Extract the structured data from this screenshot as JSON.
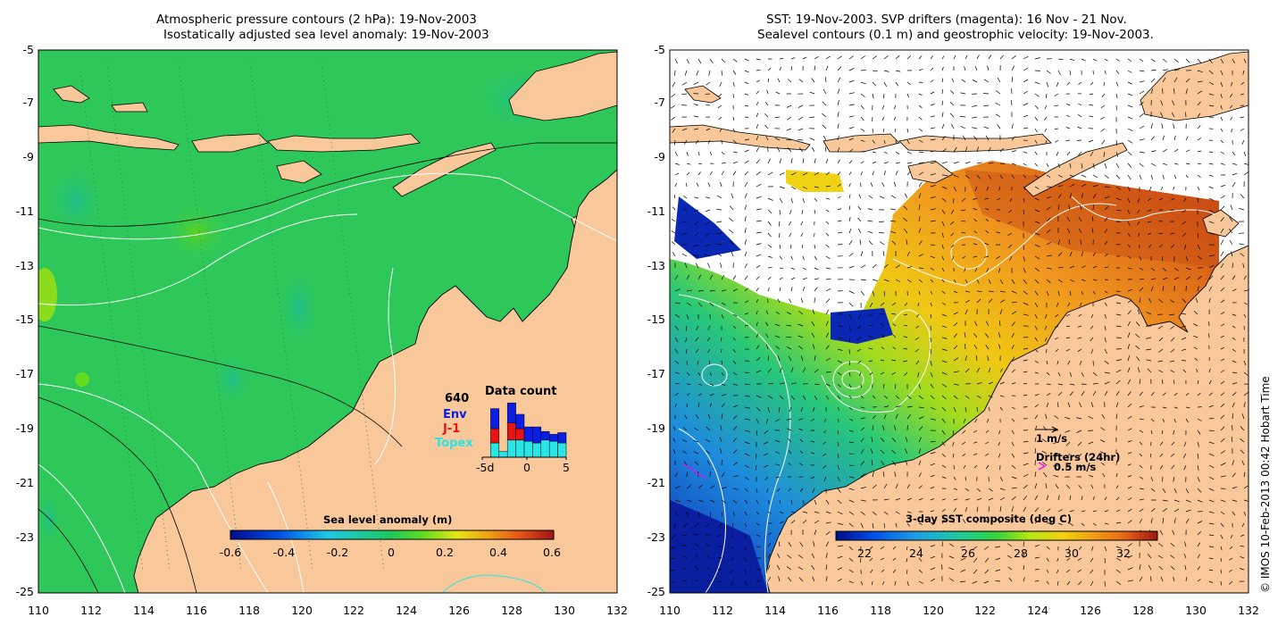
{
  "left_panel": {
    "title_line1": "Atmospheric pressure contours (2 hPa): 19-Nov-2003",
    "title_line2": "Isostatically adjusted sea level anomaly: 19-Nov-2003",
    "y_ticks": [
      "-5",
      "-7",
      "-9",
      "-11",
      "-13",
      "-15",
      "-17",
      "-19",
      "-21",
      "-23",
      "-25"
    ],
    "x_ticks": [
      "110",
      "112",
      "114",
      "116",
      "118",
      "120",
      "122",
      "124",
      "126",
      "128",
      "130",
      "132"
    ],
    "colorbar": {
      "title": "Sea level anomaly (m)",
      "ticks": [
        "-0.6",
        "-0.4",
        "-0.2",
        "0",
        "0.2",
        "0.4",
        "0.6"
      ]
    },
    "data_count": {
      "title": "Data count",
      "total": "640",
      "legend": [
        {
          "label": "Env",
          "color": "#0a1ee6"
        },
        {
          "label": "J-1",
          "color": "#e61414"
        },
        {
          "label": "Topex",
          "color": "#28e6e6"
        }
      ],
      "x_ticks": [
        "-5d",
        "0",
        "5"
      ],
      "bars": [
        {
          "day": -4,
          "topex": 0.25,
          "j1": 0.25,
          "env": 0.35
        },
        {
          "day": -3,
          "topex": 0.1,
          "j1": 0.0,
          "env": 0.0
        },
        {
          "day": -2,
          "topex": 0.3,
          "j1": 0.3,
          "env": 0.35
        },
        {
          "day": -1,
          "topex": 0.3,
          "j1": 0.2,
          "env": 0.25
        },
        {
          "day": 0,
          "topex": 0.28,
          "j1": 0.0,
          "env": 0.25
        },
        {
          "day": 1,
          "topex": 0.25,
          "j1": 0.0,
          "env": 0.28
        },
        {
          "day": 2,
          "topex": 0.3,
          "j1": 0.0,
          "env": 0.15
        },
        {
          "day": 3,
          "topex": 0.28,
          "j1": 0.0,
          "env": 0.12
        },
        {
          "day": 4,
          "topex": 0.25,
          "j1": 0.0,
          "env": 0.18
        }
      ]
    }
  },
  "right_panel": {
    "title_line1": "SST: 19-Nov-2003. SVP drifters (magenta): 16 Nov - 21 Nov.",
    "title_line2": "Sealevel contours (0.1 m) and geostrophic velocity: 19-Nov-2003.",
    "y_ticks": [
      "-5",
      "-7",
      "-9",
      "-11",
      "-13",
      "-15",
      "-17",
      "-19",
      "-21",
      "-23",
      "-25"
    ],
    "x_ticks": [
      "110",
      "112",
      "114",
      "116",
      "118",
      "120",
      "122",
      "124",
      "126",
      "128",
      "130",
      "132"
    ],
    "colorbar": {
      "title": "3-day SST composite (deg C)",
      "ticks": [
        "22",
        "24",
        "26",
        "28",
        "30",
        "32"
      ]
    },
    "velocity_legend": "1 m/s",
    "drifters_legend": "Drifters (24hr)",
    "drifters_speed": "0.5 m/s",
    "credit": "© IMOS 10-Feb-2013 00:42 Hobart Time"
  },
  "colors": {
    "land": "#f8c89a",
    "ocean_sla": "#2ec85a",
    "no_data": "#ffffff",
    "drifter": "#ff00ff"
  }
}
